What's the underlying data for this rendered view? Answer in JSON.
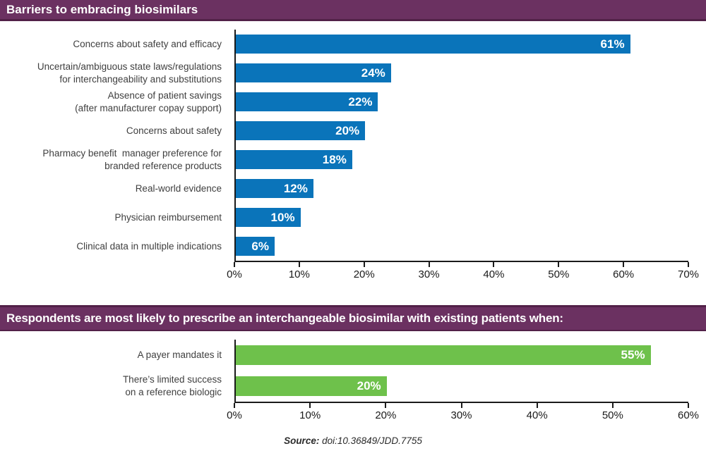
{
  "headers": {
    "first": "Barriers to embracing biosimilars",
    "second": "Respondents are most likely to prescribe an interchangeable biosimilar with existing patients when:"
  },
  "source": {
    "label": "Source:",
    "text": " doi:10.36849/JDD.7755"
  },
  "colors": {
    "header_purple": "#6b3161",
    "header_purple_dark": "#522148",
    "bar_blue": "#0a74ba",
    "bar_green": "#6ec14b",
    "axis_black": "#1a1a1a"
  },
  "chart_data": [
    {
      "type": "bar",
      "orientation": "horizontal",
      "title": "Barriers to embracing biosimilars",
      "bar_color": "#0a74ba",
      "categories": [
        "Concerns about safety and efficacy",
        "Uncertain/ambiguous state laws/regulations\nfor interchangeability and substitutions",
        "Absence of patient savings\n(after manufacturer copay support)",
        "Concerns about safety",
        "Pharmacy benefit  manager preference for\nbranded reference products",
        "Real-world evidence",
        "Physician reimbursement",
        "Clinical data in multiple indications"
      ],
      "values": [
        61,
        24,
        22,
        20,
        18,
        12,
        10,
        6
      ],
      "value_labels": [
        "61%",
        "24%",
        "22%",
        "20%",
        "18%",
        "12%",
        "10%",
        "6%"
      ],
      "xlim": [
        0,
        70
      ],
      "tick_step": 10,
      "tick_labels": [
        "0%",
        "10%",
        "20%",
        "30%",
        "40%",
        "50%",
        "60%",
        "70%"
      ],
      "grid": false,
      "legend": false
    },
    {
      "type": "bar",
      "orientation": "horizontal",
      "title": "Respondents are most likely to prescribe an interchangeable biosimilar with existing patients when:",
      "bar_color": "#6ec14b",
      "categories": [
        "A payer mandates it",
        "There’s limited success\non a reference biologic"
      ],
      "values": [
        55,
        20
      ],
      "value_labels": [
        "55%",
        "20%"
      ],
      "xlim": [
        0,
        60
      ],
      "tick_step": 10,
      "tick_labels": [
        "0%",
        "10%",
        "20%",
        "30%",
        "40%",
        "50%",
        "60%"
      ],
      "grid": false,
      "legend": false
    }
  ]
}
